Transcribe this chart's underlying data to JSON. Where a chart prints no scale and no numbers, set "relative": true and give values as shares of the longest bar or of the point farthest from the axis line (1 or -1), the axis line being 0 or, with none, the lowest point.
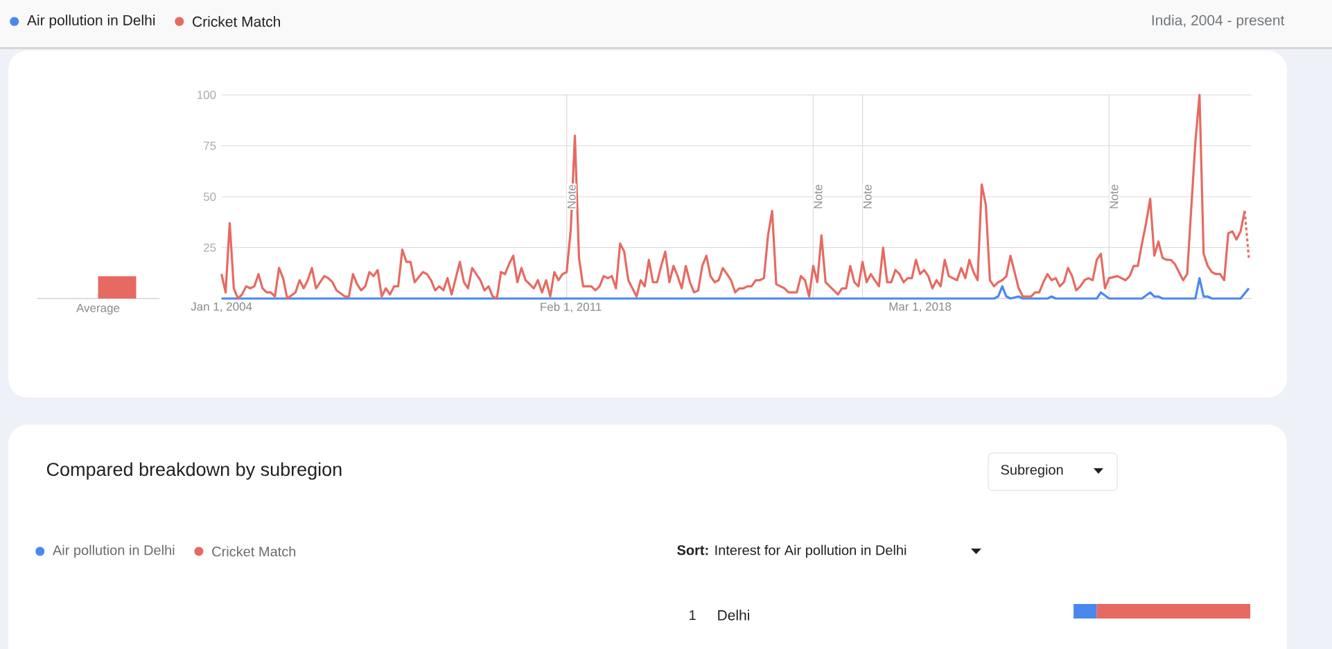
{
  "chart_data": [
    {
      "type": "line",
      "subtitle": "India, 2004 - present",
      "legend": "top",
      "grid": "y",
      "xlim": [
        "2004-01",
        "2024-11-20"
      ],
      "ylim": [
        0,
        100
      ],
      "xticks": [
        {
          "value": "2004-01-01",
          "label": "Jan 1, 2004"
        },
        {
          "value": "2011-02-01",
          "label": "Feb 1, 2011"
        },
        {
          "value": "2018-03-01",
          "label": "Mar 1, 2018"
        }
      ],
      "yticks": [
        25,
        50,
        75,
        100
      ],
      "ref_lines": [
        {
          "axis": "x",
          "value": "2011-01",
          "label": "Note"
        },
        {
          "axis": "x",
          "value": "2016-01",
          "label": "Note"
        },
        {
          "axis": "x",
          "value": "2017-01",
          "label": "Note"
        },
        {
          "axis": "x",
          "value": "2022-01",
          "label": "Note"
        }
      ],
      "series": [
        {
          "name": "Air pollution in Delhi",
          "color": "#4a88f0",
          "x": [
            "2004-01",
            "2019-09",
            "2019-10",
            "2019-11",
            "2019-12",
            "2020-01",
            "2020-03",
            "2020-04",
            "2020-10",
            "2020-11",
            "2020-12",
            "2021-10",
            "2021-11",
            "2022-01",
            "2022-09",
            "2022-11",
            "2022-12",
            "2023-01",
            "2023-02",
            "2023-10",
            "2023-11",
            "2023-12",
            "2024-01",
            "2024-02",
            "2024-09",
            "2024-11"
          ],
          "values": [
            0,
            0,
            1,
            6,
            1,
            0,
            1,
            0,
            0,
            1,
            0,
            0,
            3,
            0,
            0,
            3,
            1,
            1,
            0,
            0,
            10,
            1,
            1,
            0,
            0,
            5
          ]
        },
        {
          "name": "Cricket Match",
          "color": "#e66a61",
          "x": [
            "2004-01",
            "2004-02",
            "2004-03",
            "2004-04",
            "2004-05",
            "2004-06",
            "2004-07",
            "2004-08",
            "2004-09",
            "2004-10",
            "2004-11",
            "2004-12",
            "2005-01",
            "2005-02",
            "2005-03",
            "2005-04",
            "2005-05",
            "2005-07",
            "2005-08",
            "2005-09",
            "2005-10",
            "2005-11",
            "2005-12",
            "2006-02",
            "2006-03",
            "2006-04",
            "2006-05",
            "2006-07",
            "2006-08",
            "2006-09",
            "2006-10",
            "2006-11",
            "2006-12",
            "2007-01",
            "2007-02",
            "2007-03",
            "2007-04",
            "2007-05",
            "2007-06",
            "2007-07",
            "2007-08",
            "2007-09",
            "2007-10",
            "2007-11",
            "2007-12",
            "2008-02",
            "2008-03",
            "2008-04",
            "2008-05",
            "2008-06",
            "2008-07",
            "2008-08",
            "2008-09",
            "2008-11",
            "2008-12",
            "2009-01",
            "2009-02",
            "2009-03",
            "2009-04",
            "2009-05",
            "2009-06",
            "2009-07",
            "2009-08",
            "2009-09",
            "2009-10",
            "2009-11",
            "2009-12",
            "2010-01",
            "2010-02",
            "2010-03",
            "2010-04",
            "2010-05",
            "2010-06",
            "2010-07",
            "2010-08",
            "2010-09",
            "2010-10",
            "2010-11",
            "2010-12",
            "2011-01",
            "2011-02",
            "2011-03",
            "2011-04",
            "2011-05",
            "2011-07",
            "2011-08",
            "2011-09",
            "2011-10",
            "2011-11",
            "2011-12",
            "2012-01",
            "2012-02",
            "2012-03",
            "2012-04",
            "2012-05",
            "2012-06",
            "2012-07",
            "2012-08",
            "2012-09",
            "2012-10",
            "2012-11",
            "2012-12",
            "2013-01",
            "2013-02",
            "2013-03",
            "2013-04",
            "2013-05",
            "2013-06",
            "2013-07",
            "2013-08",
            "2013-09",
            "2013-10",
            "2013-11",
            "2013-12",
            "2014-01",
            "2014-02",
            "2014-03",
            "2014-04",
            "2014-05",
            "2014-06",
            "2014-07",
            "2014-08",
            "2014-09",
            "2014-10",
            "2014-11",
            "2014-12",
            "2015-01",
            "2015-02",
            "2015-03",
            "2015-04",
            "2015-05",
            "2015-06",
            "2015-07",
            "2015-08",
            "2015-09",
            "2015-10",
            "2015-11",
            "2015-12",
            "2016-01",
            "2016-02",
            "2016-03",
            "2016-04",
            "2016-05",
            "2016-06",
            "2016-07",
            "2016-08",
            "2016-09",
            "2016-10",
            "2016-11",
            "2016-12",
            "2017-01",
            "2017-02",
            "2017-03",
            "2017-04",
            "2017-05",
            "2017-06",
            "2017-07",
            "2017-08",
            "2017-09",
            "2017-10",
            "2017-11",
            "2017-12",
            "2018-01",
            "2018-02",
            "2018-03",
            "2018-04",
            "2018-05",
            "2018-06",
            "2018-07",
            "2018-08",
            "2018-09",
            "2018-10",
            "2018-11",
            "2018-12",
            "2019-01",
            "2019-02",
            "2019-03",
            "2019-04",
            "2019-05",
            "2019-06",
            "2019-07",
            "2019-08",
            "2019-09",
            "2019-10",
            "2019-11",
            "2019-12",
            "2020-01",
            "2020-02",
            "2020-03",
            "2020-04",
            "2020-05",
            "2020-06",
            "2020-07",
            "2020-08",
            "2020-09",
            "2020-10",
            "2020-11",
            "2020-12",
            "2021-01",
            "2021-02",
            "2021-03",
            "2021-04",
            "2021-05",
            "2021-06",
            "2021-07",
            "2021-08",
            "2021-09",
            "2021-10",
            "2021-11",
            "2021-12",
            "2022-01",
            "2022-03",
            "2022-05",
            "2022-06",
            "2022-07",
            "2022-08",
            "2022-09",
            "2022-10",
            "2022-11",
            "2022-12",
            "2023-01",
            "2023-02",
            "2023-03",
            "2023-04",
            "2023-05",
            "2023-06",
            "2023-07",
            "2023-08",
            "2023-10",
            "2023-11",
            "2023-12",
            "2024-01",
            "2024-02",
            "2024-03",
            "2024-04",
            "2024-05",
            "2024-06",
            "2024-07",
            "2024-08",
            "2024-09",
            "2024-10"
          ],
          "values": [
            12,
            3,
            37,
            5,
            0,
            2,
            6,
            5,
            6,
            12,
            5,
            3,
            3,
            1,
            15,
            10,
            0,
            3,
            9,
            5,
            9,
            15,
            5,
            11,
            10,
            8,
            4,
            1,
            1,
            12,
            7,
            4,
            6,
            13,
            11,
            14,
            1,
            5,
            2,
            6,
            6,
            24,
            18,
            18,
            8,
            13,
            12,
            9,
            4,
            6,
            4,
            10,
            2,
            18,
            8,
            5,
            15,
            12,
            9,
            4,
            6,
            1,
            0,
            13,
            12,
            17,
            21,
            8,
            15,
            9,
            7,
            5,
            9,
            3,
            9,
            1,
            13,
            9,
            12,
            13,
            34,
            80,
            20,
            6,
            6,
            4,
            6,
            11,
            10,
            11,
            5,
            27,
            23,
            9,
            5,
            1,
            9,
            6,
            19,
            8,
            8,
            16,
            23,
            8,
            16,
            11,
            5,
            16,
            8,
            3,
            4,
            16,
            21,
            11,
            8,
            9,
            15,
            12,
            9,
            3,
            5,
            5,
            6,
            6,
            9,
            9,
            10,
            31,
            43,
            7,
            6,
            5,
            3,
            3,
            3,
            11,
            9,
            1,
            16,
            8,
            31,
            8,
            6,
            4,
            2,
            5,
            5,
            16,
            8,
            6,
            18,
            8,
            12,
            9,
            6,
            25,
            8,
            8,
            14,
            12,
            8,
            10,
            10,
            19,
            12,
            14,
            11,
            5,
            9,
            6,
            19,
            11,
            10,
            9,
            15,
            10,
            19,
            13,
            9,
            56,
            46,
            9,
            6,
            8,
            9,
            11,
            21,
            13,
            5,
            1,
            1,
            1,
            3,
            3,
            8,
            12,
            9,
            10,
            6,
            8,
            15,
            11,
            4,
            6,
            9,
            10,
            9,
            19,
            22,
            5,
            10,
            11,
            9,
            11,
            16,
            16,
            27,
            37,
            49,
            21,
            28,
            20,
            19,
            19,
            17,
            13,
            9,
            12,
            77,
            100,
            22,
            16,
            13,
            12,
            12,
            9,
            32,
            33,
            29,
            33,
            43
          ]
        },
        {
          "color": "#e66a61",
          "line_style": "dotted",
          "x": [
            "2024-10",
            "2024-11"
          ],
          "values": [
            43,
            20
          ]
        }
      ]
    },
    {
      "type": "bar",
      "categories": [
        "Average"
      ],
      "ylim": [
        0,
        100
      ],
      "tick_labels": "x",
      "series": [
        {
          "color": "#4a88f0",
          "values": [
            0
          ]
        },
        {
          "color": "#e66a61",
          "values": [
            11
          ]
        }
      ]
    },
    {
      "type": "bar",
      "orientation": "horizontal",
      "stacked": true,
      "relative": true,
      "legend": "top left",
      "annotations": [
        "Compared breakdown by subregion",
        "Subregion",
        "**Sort:** Interest for Air pollution in Delhi",
        "1"
      ],
      "categories": [
        "Delhi"
      ],
      "series": [
        {
          "name": "Air pollution in Delhi",
          "color": "#4a88f0",
          "values": [
            0.13
          ]
        },
        {
          "name": "Cricket Match",
          "color": "#e66a61",
          "values": [
            0.87
          ]
        }
      ]
    }
  ]
}
